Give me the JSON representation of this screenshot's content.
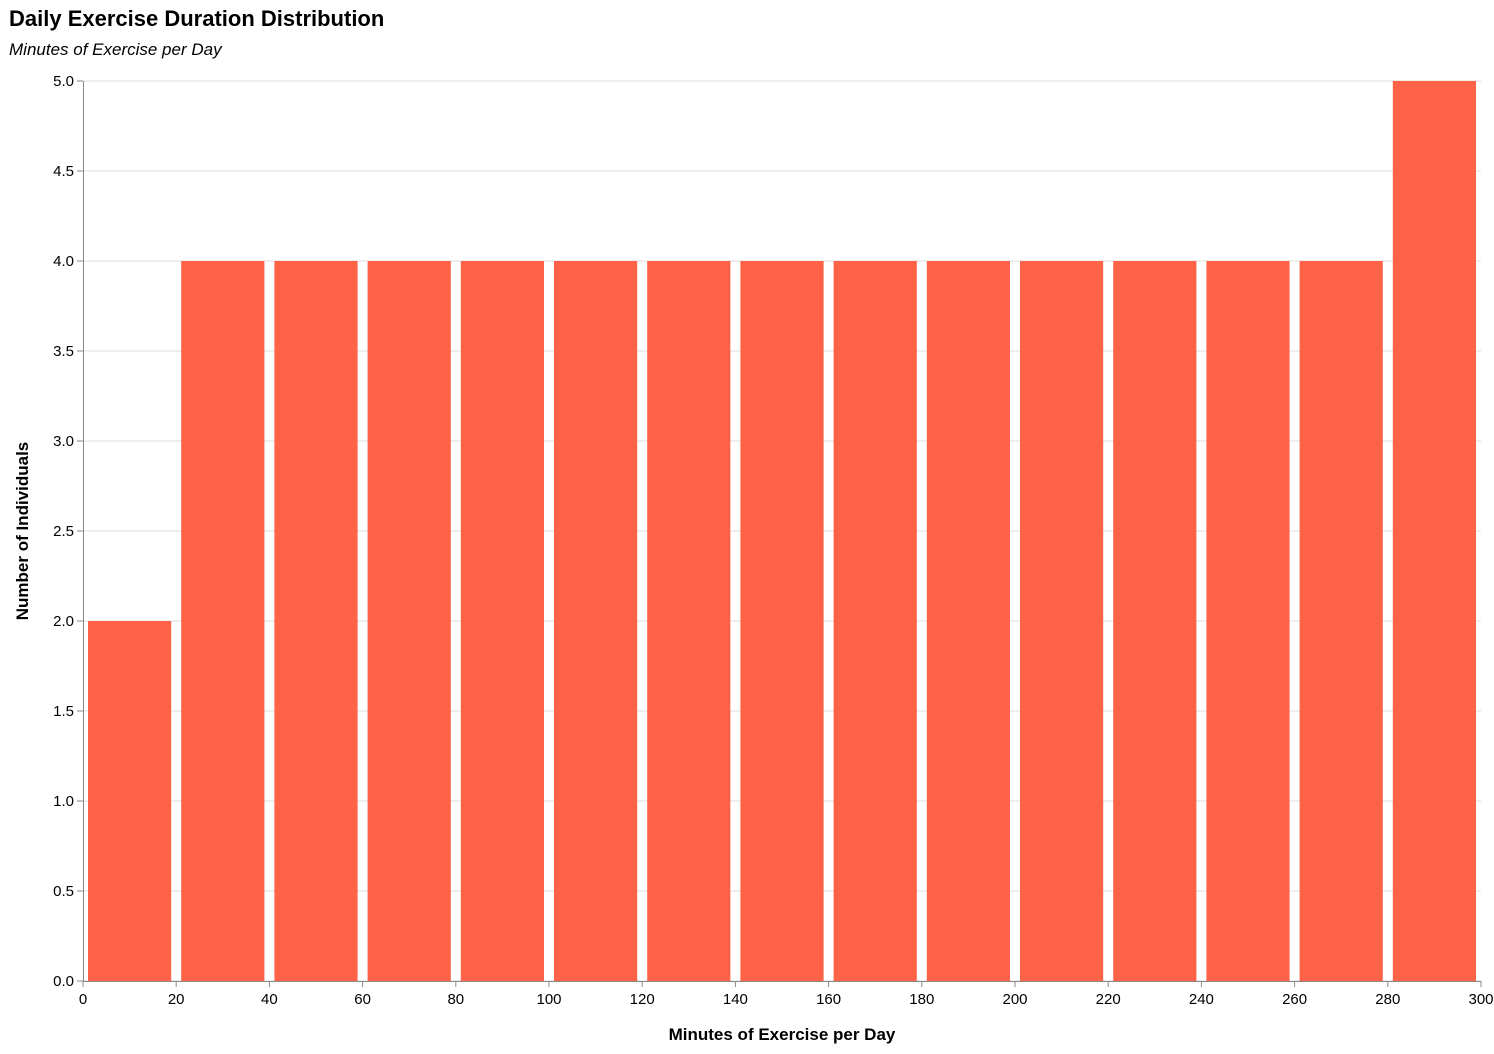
{
  "chart_data": {
    "type": "bar",
    "title": "Daily Exercise Duration Distribution",
    "subtitle": "Minutes of Exercise per Day",
    "xlabel": "Minutes of Exercise per Day",
    "ylabel": "Number of Individuals",
    "xlim": [
      0,
      300
    ],
    "ylim": [
      0,
      5
    ],
    "x_ticks": [
      "0",
      "20",
      "40",
      "60",
      "80",
      "100",
      "120",
      "140",
      "160",
      "180",
      "200",
      "220",
      "240",
      "260",
      "280",
      "300"
    ],
    "y_ticks": [
      "0.0",
      "0.5",
      "1.0",
      "1.5",
      "2.0",
      "2.5",
      "3.0",
      "3.5",
      "4.0",
      "4.5",
      "5.0"
    ],
    "bins": [
      {
        "start": 0,
        "end": 20,
        "value": 2
      },
      {
        "start": 20,
        "end": 40,
        "value": 4
      },
      {
        "start": 40,
        "end": 60,
        "value": 4
      },
      {
        "start": 60,
        "end": 80,
        "value": 4
      },
      {
        "start": 80,
        "end": 100,
        "value": 4
      },
      {
        "start": 100,
        "end": 120,
        "value": 4
      },
      {
        "start": 120,
        "end": 140,
        "value": 4
      },
      {
        "start": 140,
        "end": 160,
        "value": 4
      },
      {
        "start": 160,
        "end": 180,
        "value": 4
      },
      {
        "start": 180,
        "end": 200,
        "value": 4
      },
      {
        "start": 200,
        "end": 220,
        "value": 4
      },
      {
        "start": 220,
        "end": 240,
        "value": 4
      },
      {
        "start": 240,
        "end": 260,
        "value": 4
      },
      {
        "start": 260,
        "end": 280,
        "value": 4
      },
      {
        "start": 280,
        "end": 300,
        "value": 5
      }
    ],
    "bar_color": "#ff6347",
    "grid": true,
    "legend": "none"
  }
}
